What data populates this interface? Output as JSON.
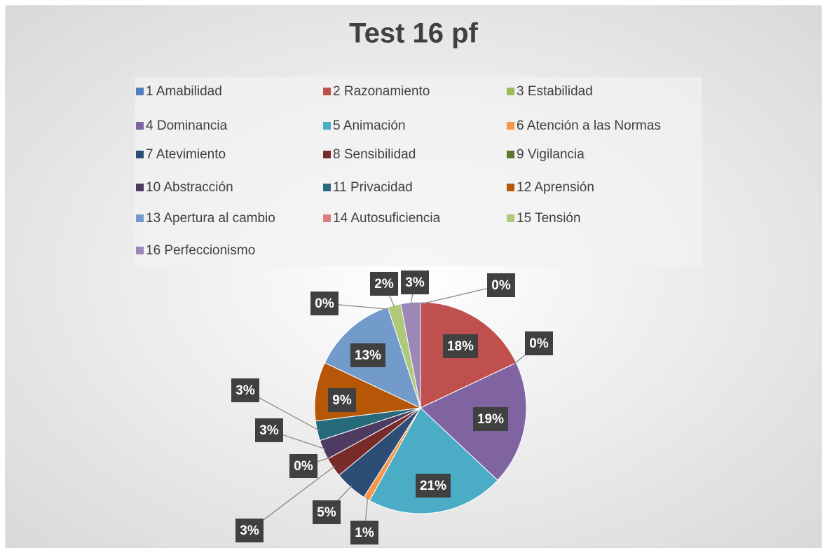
{
  "chart_data": {
    "type": "pie",
    "title": "Test 16 pf",
    "categories": [
      "1 Amabilidad",
      "2 Razonamiento",
      "3 Estabilidad",
      "4 Dominancia",
      "5 Animación",
      "6 Atención a las Normas",
      "7 Atevimiento",
      "8 Sensibilidad",
      "9 Vigilancia",
      "10 Abstracción",
      "11 Privacidad",
      "12 Aprensión",
      "13 Apertura al cambio",
      "14 Autosuficiencia",
      "15 Tensión",
      "16 Perfeccionismo"
    ],
    "values": [
      0,
      18,
      0,
      19,
      21,
      1,
      5,
      3,
      0,
      3,
      3,
      9,
      13,
      0,
      2,
      3
    ],
    "value_labels": [
      "0%",
      "18%",
      "0%",
      "19%",
      "21%",
      "1%",
      "5%",
      "3%",
      "0%",
      "3%",
      "3%",
      "9%",
      "13%",
      "0%",
      "2%",
      "3%"
    ],
    "colors": [
      "#4f81bd",
      "#c0504d",
      "#9bbb59",
      "#8064a2",
      "#4bacc6",
      "#f79646",
      "#2c4d75",
      "#772c2a",
      "#5f7530",
      "#4d3b62",
      "#276a7c",
      "#b65708",
      "#729aca",
      "#d9807e",
      "#afc97a",
      "#9c87b8"
    ],
    "legend": "top"
  }
}
